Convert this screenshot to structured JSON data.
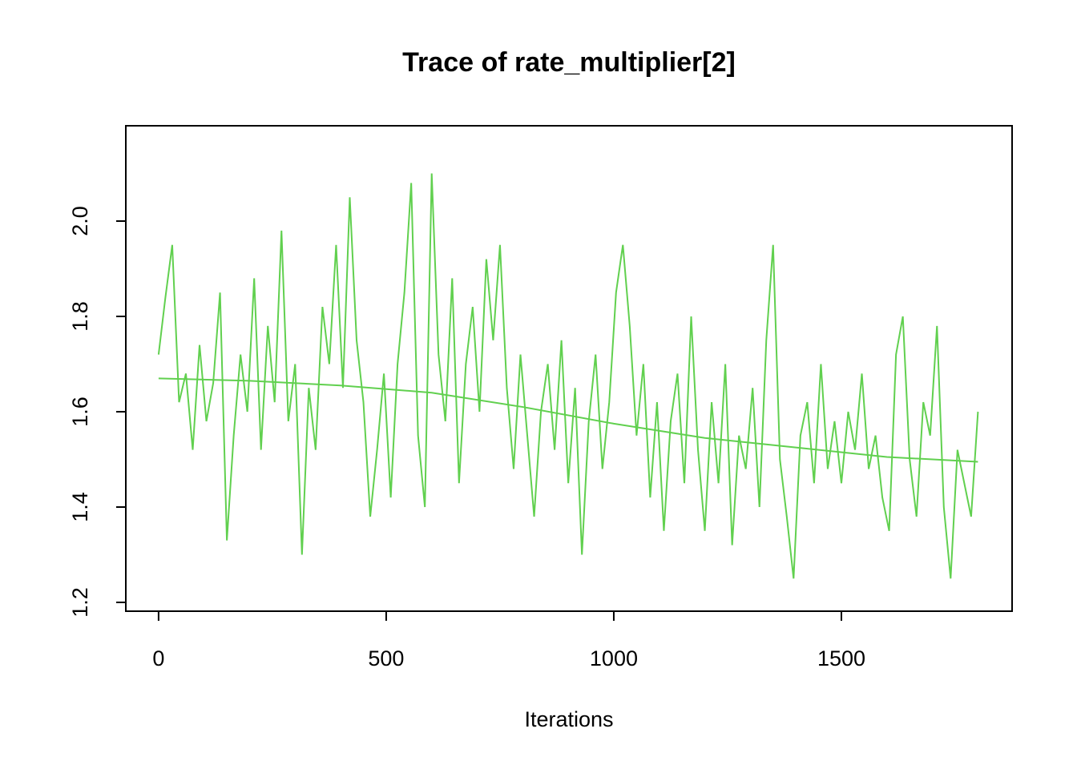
{
  "chart_data": {
    "type": "line",
    "title": "Trace of rate_multiplier[2]",
    "x_label": "Iterations",
    "xlim": [
      -72,
      1875
    ],
    "xticks": [
      0,
      500,
      1000,
      1500
    ],
    "ylim": [
      1.1815,
      2.2
    ],
    "yticks": [
      1.2,
      1.4,
      1.6,
      1.8,
      {
        "value": 2,
        "label": "2.0"
      }
    ],
    "series": [
      {
        "color": "#61d04f",
        "x": [
          0,
          15,
          30,
          45,
          60,
          75,
          90,
          105,
          120,
          135,
          150,
          165,
          180,
          195,
          210,
          225,
          240,
          255,
          270,
          285,
          300,
          315,
          330,
          345,
          360,
          375,
          390,
          405,
          420,
          435,
          450,
          465,
          480,
          495,
          510,
          525,
          540,
          555,
          570,
          585,
          600,
          615,
          630,
          645,
          660,
          675,
          690,
          705,
          720,
          735,
          750,
          765,
          780,
          795,
          810,
          825,
          840,
          855,
          870,
          885,
          900,
          915,
          930,
          945,
          960,
          975,
          990,
          1005,
          1020,
          1035,
          1050,
          1065,
          1080,
          1095,
          1110,
          1125,
          1140,
          1155,
          1170,
          1185,
          1200,
          1215,
          1230,
          1245,
          1260,
          1275,
          1290,
          1305,
          1320,
          1335,
          1350,
          1365,
          1380,
          1395,
          1410,
          1425,
          1440,
          1455,
          1470,
          1485,
          1500,
          1515,
          1530,
          1545,
          1560,
          1575,
          1590,
          1605,
          1620,
          1635,
          1650,
          1665,
          1680,
          1695,
          1710,
          1725,
          1740,
          1755,
          1770,
          1785,
          1800
        ],
        "values": [
          1.72,
          1.84,
          1.95,
          1.62,
          1.68,
          1.52,
          1.74,
          1.58,
          1.66,
          1.85,
          1.33,
          1.55,
          1.72,
          1.6,
          1.88,
          1.52,
          1.78,
          1.62,
          1.98,
          1.58,
          1.7,
          1.3,
          1.65,
          1.52,
          1.82,
          1.7,
          1.95,
          1.65,
          2.05,
          1.75,
          1.62,
          1.38,
          1.52,
          1.68,
          1.42,
          1.7,
          1.85,
          2.08,
          1.55,
          1.4,
          2.1,
          1.72,
          1.58,
          1.88,
          1.45,
          1.7,
          1.82,
          1.6,
          1.92,
          1.75,
          1.95,
          1.65,
          1.48,
          1.72,
          1.55,
          1.38,
          1.6,
          1.7,
          1.52,
          1.75,
          1.45,
          1.65,
          1.3,
          1.58,
          1.72,
          1.48,
          1.62,
          1.85,
          1.95,
          1.78,
          1.55,
          1.7,
          1.42,
          1.62,
          1.35,
          1.58,
          1.68,
          1.45,
          1.8,
          1.52,
          1.35,
          1.62,
          1.45,
          1.7,
          1.32,
          1.55,
          1.48,
          1.65,
          1.4,
          1.75,
          1.95,
          1.5,
          1.38,
          1.25,
          1.55,
          1.62,
          1.45,
          1.7,
          1.48,
          1.58,
          1.45,
          1.6,
          1.52,
          1.68,
          1.48,
          1.55,
          1.42,
          1.35,
          1.72,
          1.8,
          1.5,
          1.38,
          1.62,
          1.55,
          1.78,
          1.4,
          1.25,
          1.52,
          1.45,
          1.38,
          1.6
        ]
      },
      {
        "color": "#61d04f",
        "x": [
          0,
          200,
          400,
          600,
          800,
          1000,
          1200,
          1400,
          1600,
          1800
        ],
        "values": [
          1.67,
          1.665,
          1.655,
          1.64,
          1.61,
          1.575,
          1.545,
          1.525,
          1.505,
          1.495
        ]
      }
    ]
  }
}
